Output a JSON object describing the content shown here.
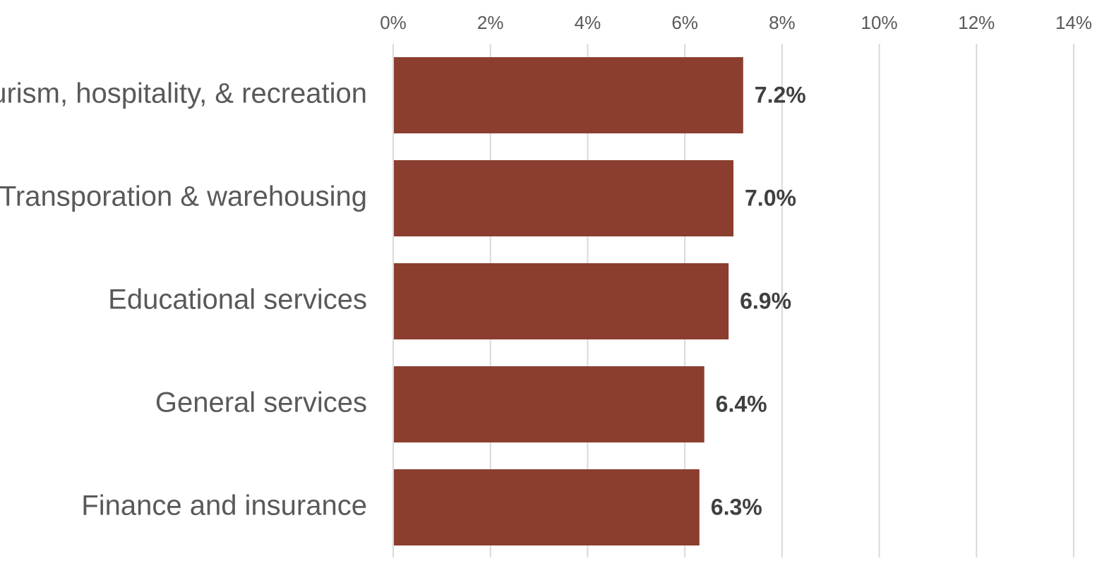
{
  "chart_data": {
    "type": "bar",
    "orientation": "horizontal",
    "title": "",
    "xlabel": "",
    "ylabel": "",
    "xlim": [
      0,
      14
    ],
    "x_ticks": [
      "0%",
      "2%",
      "4%",
      "6%",
      "8%",
      "10%",
      "12%",
      "14%"
    ],
    "x_axis_position": "top",
    "grid": "vertical",
    "legend": "none",
    "categories": [
      "Tourism, hospitality, & recreation",
      "Transporation & warehousing",
      "Educational services",
      "General services",
      "Finance and insurance"
    ],
    "values": [
      7.2,
      7.0,
      6.9,
      6.4,
      6.3
    ],
    "data_labels": [
      "7.2%",
      "7.0%",
      "6.9%",
      "6.4%",
      "6.3%"
    ],
    "bar_color": "#8b3e2f",
    "gridline_color": "#d9d9d9"
  }
}
